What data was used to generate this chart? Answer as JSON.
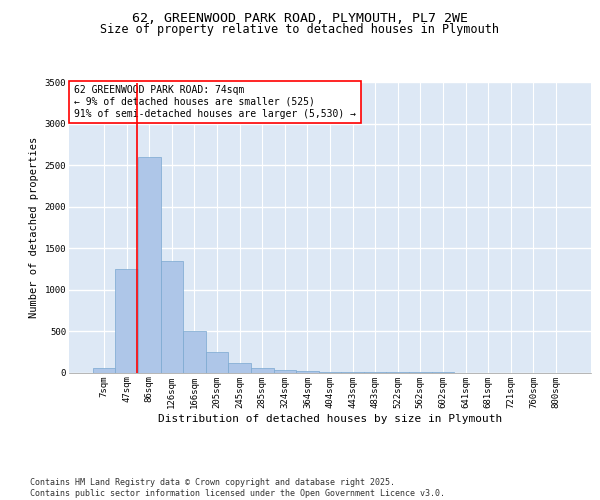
{
  "title_line1": "62, GREENWOOD PARK ROAD, PLYMOUTH, PL7 2WE",
  "title_line2": "Size of property relative to detached houses in Plymouth",
  "xlabel": "Distribution of detached houses by size in Plymouth",
  "ylabel": "Number of detached properties",
  "bar_labels": [
    "7sqm",
    "47sqm",
    "86sqm",
    "126sqm",
    "166sqm",
    "205sqm",
    "245sqm",
    "285sqm",
    "324sqm",
    "364sqm",
    "404sqm",
    "443sqm",
    "483sqm",
    "522sqm",
    "562sqm",
    "602sqm",
    "641sqm",
    "681sqm",
    "721sqm",
    "760sqm",
    "800sqm"
  ],
  "bar_values": [
    50,
    1250,
    2600,
    1350,
    500,
    250,
    120,
    55,
    35,
    20,
    10,
    5,
    3,
    2,
    1,
    1,
    0,
    0,
    0,
    0,
    0
  ],
  "bar_color": "#aec6e8",
  "bar_edge_color": "#7aa8d0",
  "vline_x": 1.48,
  "vline_color": "red",
  "annotation_text": "62 GREENWOOD PARK ROAD: 74sqm\n← 9% of detached houses are smaller (525)\n91% of semi-detached houses are larger (5,530) →",
  "annotation_box_color": "white",
  "annotation_box_edge": "red",
  "ylim": [
    0,
    3500
  ],
  "yticks": [
    0,
    500,
    1000,
    1500,
    2000,
    2500,
    3000,
    3500
  ],
  "background_color": "#dde8f5",
  "grid_color": "white",
  "footnote": "Contains HM Land Registry data © Crown copyright and database right 2025.\nContains public sector information licensed under the Open Government Licence v3.0.",
  "title_fontsize": 9.5,
  "subtitle_fontsize": 8.5,
  "axis_label_fontsize": 7.5,
  "tick_fontsize": 6.5,
  "annotation_fontsize": 7,
  "footnote_fontsize": 6
}
